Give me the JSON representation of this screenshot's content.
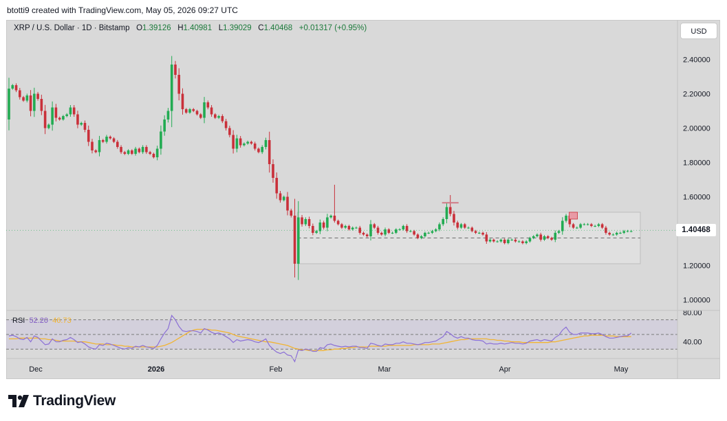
{
  "header": {
    "attribution": "btotti9 created with TradingView.com, May 05, 2026 09:27 UTC"
  },
  "legend": {
    "symbol": "XRP / U.S. Dollar · 1D · Bitstamp",
    "o_label": "O",
    "o_value": "1.39126",
    "h_label": "H",
    "h_value": "1.40981",
    "l_label": "L",
    "l_value": "1.39029",
    "c_label": "C",
    "c_value": "1.40468",
    "change": "+0.01317 (+0.95%)"
  },
  "currency_button": "USD",
  "last_price_tag": "1.40468",
  "rsi": {
    "label": "RSI",
    "value": "52.20",
    "ma_value": "46.73"
  },
  "footer": {
    "brand": "TradingView"
  },
  "colors": {
    "up": "#22ab52",
    "down": "#c9303a",
    "rsi_line": "#8b6fd6",
    "rsi_ma": "#f2b430",
    "box": "#cfcfcf"
  },
  "chart_data": [
    {
      "type": "candlestick",
      "title": "XRP / U.S. Dollar · 1D · Bitstamp",
      "ylim": [
        0.95,
        2.47
      ],
      "y_ticks": [
        "2.40000",
        "2.20000",
        "2.00000",
        "1.80000",
        "1.60000",
        "1.40000",
        "1.20000",
        "1.00000"
      ],
      "x_labels": [
        "Dec",
        "2026",
        "Feb",
        "Mar",
        "Apr",
        "May"
      ],
      "range_box": {
        "top": 1.51,
        "bottom": 1.21,
        "mid": 1.36,
        "from_x": "2026-02-06",
        "to_x": "2026-05-05"
      },
      "last_close": 1.40468,
      "closes": [
        2.23,
        2.25,
        2.22,
        2.18,
        2.16,
        2.19,
        2.1,
        2.2,
        2.17,
        2.1,
        2.0,
        2.02,
        2.12,
        2.06,
        2.05,
        2.07,
        2.08,
        2.12,
        2.08,
        2.02,
        2.03,
        1.99,
        1.92,
        1.87,
        1.86,
        1.93,
        1.92,
        1.95,
        1.94,
        1.92,
        1.89,
        1.86,
        1.85,
        1.87,
        1.85,
        1.88,
        1.86,
        1.89,
        1.86,
        1.85,
        1.83,
        1.88,
        1.98,
        2.05,
        2.1,
        2.37,
        2.31,
        2.2,
        2.11,
        2.09,
        2.11,
        2.1,
        2.08,
        2.06,
        2.15,
        2.12,
        2.08,
        2.06,
        2.07,
        2.04,
        2.0,
        1.96,
        1.88,
        1.94,
        1.9,
        1.91,
        1.92,
        1.91,
        1.88,
        1.86,
        1.89,
        1.93,
        1.79,
        1.71,
        1.62,
        1.58,
        1.6,
        1.52,
        1.49,
        1.21,
        1.48,
        1.44,
        1.47,
        1.43,
        1.39,
        1.4,
        1.45,
        1.42,
        1.48,
        1.49,
        1.46,
        1.44,
        1.42,
        1.43,
        1.41,
        1.42,
        1.42,
        1.39,
        1.38,
        1.37,
        1.44,
        1.42,
        1.39,
        1.38,
        1.41,
        1.39,
        1.39,
        1.41,
        1.41,
        1.43,
        1.4,
        1.4,
        1.38,
        1.36,
        1.37,
        1.39,
        1.39,
        1.4,
        1.41,
        1.44,
        1.47,
        1.54,
        1.5,
        1.45,
        1.42,
        1.44,
        1.42,
        1.42,
        1.4,
        1.39,
        1.39,
        1.38,
        1.34,
        1.35,
        1.34,
        1.34,
        1.35,
        1.33,
        1.35,
        1.35,
        1.34,
        1.34,
        1.33,
        1.34,
        1.36,
        1.37,
        1.38,
        1.35,
        1.37,
        1.36,
        1.35,
        1.39,
        1.4,
        1.46,
        1.49,
        1.44,
        1.42,
        1.42,
        1.44,
        1.44,
        1.44,
        1.43,
        1.43,
        1.44,
        1.42,
        1.39,
        1.38,
        1.38,
        1.39,
        1.39,
        1.4,
        1.4,
        1.4
      ],
      "start_open": 2.05
    },
    {
      "type": "line",
      "title": "RSI",
      "ylim": [
        20,
        80
      ],
      "y_ticks": [
        "80.00",
        "40.00"
      ],
      "bands": [
        70,
        50,
        30
      ],
      "series": [
        {
          "name": "RSI",
          "values": [
            48,
            49,
            47,
            44,
            43,
            46,
            40,
            48,
            46,
            41,
            36,
            37,
            44,
            40,
            40,
            42,
            43,
            46,
            43,
            39,
            40,
            37,
            33,
            31,
            30,
            36,
            35,
            38,
            37,
            35,
            33,
            31,
            30,
            32,
            31,
            34,
            33,
            35,
            33,
            32,
            31,
            35,
            44,
            52,
            58,
            76,
            70,
            61,
            55,
            54,
            55,
            55,
            54,
            52,
            58,
            56,
            53,
            51,
            52,
            50,
            47,
            44,
            39,
            43,
            41,
            42,
            43,
            42,
            40,
            39,
            41,
            44,
            35,
            30,
            26,
            24,
            26,
            22,
            21,
            13,
            29,
            28,
            30,
            29,
            27,
            27,
            32,
            31,
            36,
            37,
            35,
            34,
            33,
            34,
            33,
            34,
            34,
            32,
            32,
            31,
            38,
            37,
            35,
            34,
            37,
            36,
            36,
            38,
            38,
            40,
            38,
            38,
            37,
            36,
            37,
            39,
            39,
            40,
            41,
            44,
            47,
            54,
            51,
            47,
            45,
            47,
            45,
            45,
            43,
            42,
            42,
            41,
            37,
            38,
            37,
            37,
            38,
            37,
            38,
            39,
            38,
            38,
            37,
            38,
            41,
            42,
            43,
            41,
            43,
            42,
            41,
            46,
            49,
            56,
            60,
            53,
            50,
            50,
            52,
            52,
            52,
            51,
            51,
            52,
            50,
            47,
            45,
            45,
            46,
            47,
            48,
            48,
            52
          ]
        },
        {
          "name": "RSI-based MA",
          "values": [
            44,
            44,
            44,
            45,
            45,
            45,
            45,
            45,
            45,
            44,
            44,
            43,
            43,
            42,
            41,
            41,
            41,
            41,
            41,
            40,
            40,
            40,
            39,
            38,
            37,
            37,
            37,
            36,
            36,
            36,
            35,
            35,
            34,
            34,
            33,
            33,
            33,
            33,
            33,
            33,
            33,
            33,
            34,
            35,
            37,
            39,
            42,
            45,
            48,
            51,
            54,
            56,
            57,
            57,
            57,
            57,
            56,
            56,
            55,
            54,
            53,
            52,
            50,
            48,
            47,
            46,
            45,
            44,
            43,
            42,
            41,
            40,
            40,
            39,
            38,
            37,
            36,
            35,
            33,
            31,
            30,
            29,
            29,
            28,
            28,
            28,
            28,
            28,
            29,
            29,
            30,
            30,
            31,
            31,
            32,
            32,
            33,
            33,
            33,
            33,
            34,
            34,
            34,
            34,
            34,
            35,
            35,
            35,
            35,
            35,
            35,
            35,
            36,
            36,
            36,
            36,
            36,
            37,
            37,
            37,
            38,
            39,
            40,
            41,
            42,
            43,
            43,
            44,
            44,
            44,
            44,
            44,
            44,
            43,
            43,
            42,
            42,
            41,
            41,
            40,
            40,
            40,
            39,
            39,
            39,
            39,
            39,
            39,
            39,
            39,
            40,
            40,
            41,
            42,
            43,
            44,
            45,
            46,
            47,
            48,
            48,
            49,
            49,
            49,
            49,
            48,
            48,
            48,
            47,
            47,
            47,
            47,
            47
          ]
        }
      ]
    }
  ]
}
